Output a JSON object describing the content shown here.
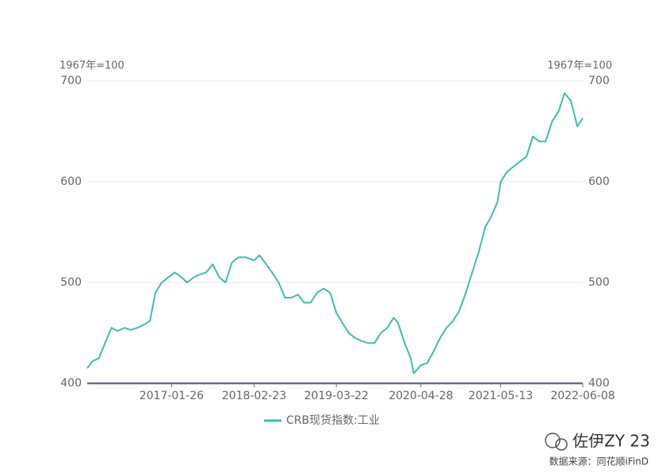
{
  "chart_data": {
    "type": "line",
    "y_unit": "1967年=100",
    "y2_unit": "1967年=100",
    "x": [
      "2015-12-21",
      "2016-01-15",
      "2016-02-15",
      "2016-03-15",
      "2016-04-15",
      "2016-05-15",
      "2016-06-15",
      "2016-07-15",
      "2016-08-15",
      "2016-09-15",
      "2016-10-15",
      "2016-11-10",
      "2016-12-10",
      "2017-01-10",
      "2017-02-10",
      "2017-03-10",
      "2017-04-10",
      "2017-05-10",
      "2017-06-10",
      "2017-07-10",
      "2017-08-10",
      "2017-09-10",
      "2017-10-10",
      "2017-11-10",
      "2017-12-10",
      "2018-01-15",
      "2018-02-23",
      "2018-03-20",
      "2018-04-15",
      "2018-05-20",
      "2018-06-20",
      "2018-07-20",
      "2018-08-20",
      "2018-09-20",
      "2018-10-20",
      "2018-11-20",
      "2018-12-20",
      "2019-01-20",
      "2019-02-20",
      "2019-03-22",
      "2019-04-20",
      "2019-05-20",
      "2019-06-20",
      "2019-07-20",
      "2019-08-20",
      "2019-09-20",
      "2019-10-20",
      "2019-11-20",
      "2019-12-20",
      "2020-01-10",
      "2020-02-10",
      "2020-03-10",
      "2020-03-25",
      "2020-04-28",
      "2020-05-28",
      "2020-06-28",
      "2020-07-28",
      "2020-08-28",
      "2020-09-28",
      "2020-10-28",
      "2020-11-28",
      "2020-12-28",
      "2021-01-28",
      "2021-02-28",
      "2021-03-28",
      "2021-04-28",
      "2021-05-13",
      "2021-06-13",
      "2021-07-13",
      "2021-08-13",
      "2021-09-13",
      "2021-10-13",
      "2021-11-13",
      "2021-12-13",
      "2022-01-13",
      "2022-02-13",
      "2022-03-13",
      "2022-04-13",
      "2022-05-13",
      "2022-06-08"
    ],
    "series": [
      {
        "name": "CRB现货指数:工业",
        "color": "#3dbdb0",
        "values": [
          415,
          422,
          425,
          440,
          455,
          452,
          455,
          453,
          455,
          458,
          462,
          490,
          500,
          505,
          510,
          506,
          500,
          505,
          508,
          510,
          518,
          505,
          500,
          520,
          525,
          525,
          522,
          527,
          520,
          510,
          500,
          485,
          485,
          488,
          480,
          480,
          490,
          494,
          490,
          470,
          460,
          450,
          445,
          442,
          440,
          440,
          450,
          455,
          465,
          460,
          440,
          425,
          410,
          418,
          420,
          432,
          445,
          455,
          462,
          472,
          490,
          510,
          530,
          555,
          565,
          580,
          600,
          610,
          615,
          620,
          625,
          645,
          640,
          640,
          660,
          670,
          688,
          680,
          655,
          663
        ]
      }
    ],
    "xlim": [
      "2015-12-21",
      "2022-06-08"
    ],
    "xticks": [
      "2017-01-26",
      "2018-02-23",
      "2019-03-22",
      "2020-04-28",
      "2021-05-13",
      "2022-06-08"
    ],
    "ylim": [
      400,
      700
    ],
    "yticks": [
      400,
      500,
      600,
      700
    ],
    "y2lim": [
      400,
      700
    ],
    "y2ticks": [
      400,
      500,
      600,
      700
    ],
    "grid": true,
    "watermark": "佐伊ZY 23",
    "source": "数据来源：同花顺iFinD"
  }
}
